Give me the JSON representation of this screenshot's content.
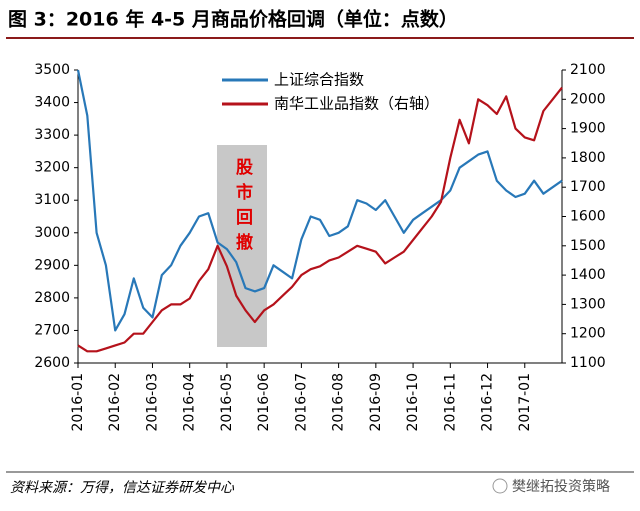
{
  "chart_data": {
    "type": "line",
    "title": "图 3：2016 年 4-5 月商品价格回调（单位：点数）",
    "annotation": "股市回撤",
    "categories": [
      "2016-01",
      null,
      null,
      null,
      "2016-02",
      null,
      null,
      null,
      "2016-03",
      null,
      null,
      null,
      "2016-04",
      null,
      null,
      null,
      "2016-05",
      null,
      null,
      null,
      "2016-06",
      null,
      null,
      null,
      "2016-07",
      null,
      null,
      null,
      "2016-08",
      null,
      null,
      null,
      "2016-09",
      null,
      null,
      null,
      "2016-10",
      null,
      null,
      null,
      "2016-11",
      null,
      null,
      null,
      "2016-12",
      null,
      null,
      null,
      "2017-01",
      null,
      null,
      null,
      null
    ],
    "series": [
      {
        "name": "上证综合指数",
        "color": "#2878b8",
        "values": [
          3500,
          3360,
          3000,
          2900,
          2700,
          2750,
          2860,
          2770,
          2740,
          2870,
          2900,
          2960,
          3000,
          3050,
          3060,
          2970,
          2950,
          2910,
          2830,
          2820,
          2830,
          2900,
          2880,
          2860,
          2980,
          3050,
          3040,
          2990,
          3000,
          3020,
          3100,
          3090,
          3070,
          3100,
          3050,
          3000,
          3040,
          3060,
          3080,
          3100,
          3130,
          3200,
          3220,
          3240,
          3250,
          3160,
          3130,
          3110,
          3120,
          3160,
          3120,
          3140,
          3160
        ]
      },
      {
        "name": "南华工业品指数（右轴）",
        "color": "#b5121b",
        "axis": "y2",
        "values": [
          1160,
          1140,
          1140,
          1150,
          1160,
          1170,
          1200,
          1200,
          1240,
          1280,
          1300,
          1300,
          1320,
          1380,
          1420,
          1500,
          1430,
          1330,
          1280,
          1240,
          1280,
          1300,
          1330,
          1360,
          1400,
          1420,
          1430,
          1450,
          1460,
          1480,
          1500,
          1490,
          1480,
          1440,
          1460,
          1480,
          1520,
          1560,
          1600,
          1650,
          1800,
          1930,
          1850,
          2000,
          1980,
          1950,
          2010,
          1900,
          1870,
          1860,
          1960,
          2000,
          2040
        ]
      }
    ],
    "ylim": [
      2600,
      3500
    ],
    "yticks": [
      2600,
      2700,
      2800,
      2900,
      3000,
      3100,
      3200,
      3300,
      3400,
      3500
    ],
    "y2lim": [
      1100,
      2100
    ],
    "y2ticks": [
      1100,
      1200,
      1300,
      1400,
      1500,
      1600,
      1700,
      1800,
      1900,
      2000,
      2100
    ],
    "legend": "top"
  },
  "source": "资料来源：万得，信达证券研发中心",
  "watermark": "樊继拓投资策略"
}
